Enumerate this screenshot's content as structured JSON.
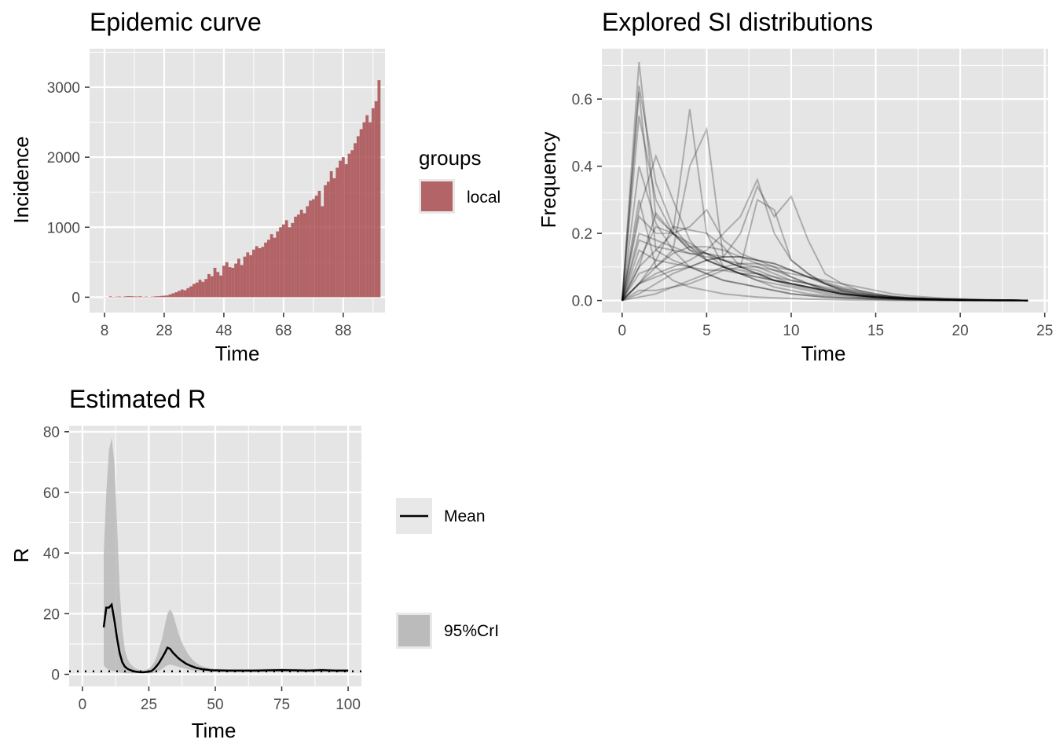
{
  "colors": {
    "panel_background": "#e5e5e5",
    "grid": "#ffffff",
    "incidence_fill": "#a84c50",
    "line": "#000000",
    "ribbon": "#b3b3b3",
    "text_axis": "#4d4d4d"
  },
  "chart_data": [
    {
      "id": "epicurve",
      "type": "bar",
      "title": "Epidemic curve",
      "xlabel": "Time",
      "ylabel": "Incidence",
      "xlim": [
        3,
        102
      ],
      "ylim": [
        -220,
        3550
      ],
      "xticks": [
        8,
        28,
        48,
        68,
        88
      ],
      "xtick_labels": [
        "8",
        "28",
        "48",
        "68",
        "88"
      ],
      "yticks": [
        0,
        1000,
        2000,
        3000
      ],
      "ytick_labels": [
        "0",
        "1000",
        "2000",
        "3000"
      ],
      "grid": true,
      "legend": {
        "title": "groups",
        "entries": [
          "local"
        ],
        "placement": "right"
      },
      "x": [
        8,
        9,
        10,
        11,
        12,
        13,
        14,
        15,
        16,
        17,
        18,
        19,
        20,
        21,
        22,
        23,
        24,
        25,
        26,
        27,
        28,
        29,
        30,
        31,
        32,
        33,
        34,
        35,
        36,
        37,
        38,
        39,
        40,
        41,
        42,
        43,
        44,
        45,
        46,
        47,
        48,
        49,
        50,
        51,
        52,
        53,
        54,
        55,
        56,
        57,
        58,
        59,
        60,
        61,
        62,
        63,
        64,
        65,
        66,
        67,
        68,
        69,
        70,
        71,
        72,
        73,
        74,
        75,
        76,
        77,
        78,
        79,
        80,
        81,
        82,
        83,
        84,
        85,
        86,
        87,
        88,
        89,
        90,
        91,
        92,
        93,
        94,
        95,
        96,
        97,
        98,
        99,
        100
      ],
      "values": [
        2,
        3,
        12,
        5,
        8,
        10,
        6,
        12,
        15,
        14,
        11,
        10,
        13,
        6,
        9,
        5,
        8,
        12,
        14,
        18,
        22,
        25,
        40,
        55,
        70,
        90,
        110,
        100,
        130,
        155,
        190,
        210,
        250,
        220,
        260,
        330,
        300,
        420,
        360,
        310,
        450,
        500,
        430,
        420,
        480,
        550,
        460,
        580,
        640,
        600,
        680,
        730,
        700,
        720,
        780,
        820,
        900,
        850,
        940,
        1000,
        1040,
        1100,
        1000,
        1060,
        1150,
        1180,
        1250,
        1200,
        1300,
        1380,
        1400,
        1450,
        1520,
        1300,
        1600,
        1650,
        1800,
        1700,
        1850,
        1950,
        2000,
        1900,
        2050,
        2100,
        2200,
        2300,
        2400,
        2500,
        2600,
        2500,
        2700,
        2800,
        3100
      ]
    },
    {
      "id": "si",
      "type": "line",
      "title": "Explored SI distributions",
      "xlabel": "Time",
      "ylabel": "Frequency",
      "xlim": [
        -1.2,
        25.2
      ],
      "ylim": [
        -0.036,
        0.75
      ],
      "xticks": [
        0,
        5,
        10,
        15,
        20,
        25
      ],
      "xtick_labels": [
        "0",
        "5",
        "10",
        "15",
        "20",
        "25"
      ],
      "yticks": [
        0,
        0.2,
        0.4,
        0.6
      ],
      "ytick_labels": [
        "0.0",
        "0.2",
        "0.4",
        "0.6"
      ],
      "grid": true,
      "x": [
        0,
        1,
        2,
        3,
        4,
        5,
        6,
        7,
        8,
        9,
        10,
        11,
        12,
        13,
        14,
        15,
        16,
        17,
        18,
        19,
        20,
        21,
        22,
        23,
        24
      ],
      "series": [
        {
          "values": [
            0,
            0.71,
            0.25,
            0.2,
            0.15,
            0.14,
            0.1,
            0.08,
            0.06,
            0.04,
            0.03,
            0.02,
            0.015,
            0.01,
            0.008,
            0.006,
            0.004,
            0.003,
            0.002,
            0.002,
            0.001,
            0.001,
            0.001,
            0.001,
            0
          ]
        },
        {
          "values": [
            0,
            0.64,
            0.35,
            0.22,
            0.16,
            0.12,
            0.1,
            0.08,
            0.06,
            0.05,
            0.04,
            0.03,
            0.02,
            0.015,
            0.01,
            0.008,
            0.006,
            0.004,
            0.003,
            0.002,
            0.002,
            0.001,
            0.001,
            0.001,
            0
          ]
        },
        {
          "values": [
            0,
            0.55,
            0.3,
            0.2,
            0.15,
            0.12,
            0.1,
            0.08,
            0.07,
            0.06,
            0.05,
            0.04,
            0.03,
            0.02,
            0.015,
            0.01,
            0.008,
            0.006,
            0.004,
            0.003,
            0.002,
            0.002,
            0.001,
            0.001,
            0
          ]
        },
        {
          "values": [
            0,
            0.62,
            0.15,
            0.12,
            0.1,
            0.08,
            0.06,
            0.05,
            0.04,
            0.03,
            0.02,
            0.015,
            0.01,
            0.008,
            0.006,
            0.004,
            0.003,
            0.002,
            0.002,
            0.001,
            0.001,
            0.001,
            0,
            0,
            0
          ]
        },
        {
          "values": [
            0,
            0.27,
            0.43,
            0.3,
            0.18,
            0.12,
            0.1,
            0.09,
            0.08,
            0.06,
            0.05,
            0.04,
            0.03,
            0.02,
            0.015,
            0.01,
            0.008,
            0.006,
            0.004,
            0.003,
            0.002,
            0.001,
            0.001,
            0.001,
            0
          ]
        },
        {
          "values": [
            0,
            0.1,
            0.15,
            0.2,
            0.57,
            0.2,
            0.1,
            0.08,
            0.07,
            0.06,
            0.05,
            0.04,
            0.03,
            0.02,
            0.015,
            0.01,
            0.008,
            0.006,
            0.004,
            0.003,
            0.002,
            0.001,
            0.001,
            0.001,
            0
          ]
        },
        {
          "values": [
            0,
            0.08,
            0.1,
            0.15,
            0.4,
            0.51,
            0.12,
            0.1,
            0.08,
            0.06,
            0.05,
            0.04,
            0.03,
            0.02,
            0.015,
            0.01,
            0.008,
            0.006,
            0.004,
            0.003,
            0.002,
            0.001,
            0.001,
            0.001,
            0
          ]
        },
        {
          "values": [
            0,
            0.05,
            0.08,
            0.1,
            0.12,
            0.15,
            0.2,
            0.25,
            0.36,
            0.2,
            0.12,
            0.08,
            0.05,
            0.03,
            0.02,
            0.015,
            0.01,
            0.008,
            0.006,
            0.004,
            0.003,
            0.002,
            0.001,
            0.001,
            0
          ]
        },
        {
          "values": [
            0,
            0.05,
            0.07,
            0.09,
            0.1,
            0.12,
            0.13,
            0.2,
            0.34,
            0.25,
            0.31,
            0.18,
            0.08,
            0.05,
            0.03,
            0.02,
            0.012,
            0.008,
            0.006,
            0.004,
            0.003,
            0.002,
            0.001,
            0.001,
            0
          ]
        },
        {
          "values": [
            0,
            0.1,
            0.26,
            0.2,
            0.16,
            0.14,
            0.12,
            0.1,
            0.09,
            0.07,
            0.05,
            0.04,
            0.03,
            0.02,
            0.015,
            0.01,
            0.007,
            0.005,
            0.004,
            0.003,
            0.002,
            0.001,
            0.001,
            0.001,
            0
          ]
        },
        {
          "values": [
            0,
            0.2,
            0.18,
            0.16,
            0.14,
            0.13,
            0.12,
            0.11,
            0.1,
            0.08,
            0.06,
            0.05,
            0.03,
            0.02,
            0.015,
            0.01,
            0.007,
            0.005,
            0.004,
            0.003,
            0.002,
            0.001,
            0.001,
            0.001,
            0
          ]
        },
        {
          "values": [
            0,
            0.02,
            0.05,
            0.08,
            0.1,
            0.12,
            0.13,
            0.13,
            0.12,
            0.11,
            0.09,
            0.07,
            0.05,
            0.035,
            0.025,
            0.015,
            0.01,
            0.007,
            0.005,
            0.003,
            0.002,
            0.001,
            0.001,
            0.001,
            0
          ]
        },
        {
          "values": [
            0,
            0.01,
            0.02,
            0.04,
            0.06,
            0.08,
            0.1,
            0.11,
            0.11,
            0.1,
            0.09,
            0.07,
            0.055,
            0.04,
            0.03,
            0.02,
            0.013,
            0.009,
            0.006,
            0.004,
            0.003,
            0.002,
            0.001,
            0.001,
            0
          ]
        },
        {
          "values": [
            0,
            0.15,
            0.12,
            0.11,
            0.1,
            0.09,
            0.09,
            0.08,
            0.08,
            0.07,
            0.06,
            0.05,
            0.04,
            0.03,
            0.02,
            0.015,
            0.01,
            0.007,
            0.005,
            0.003,
            0.002,
            0.001,
            0.001,
            0.001,
            0
          ]
        },
        {
          "values": [
            0,
            0.3,
            0.1,
            0.06,
            0.04,
            0.03,
            0.02,
            0.015,
            0.01,
            0.008,
            0.006,
            0.004,
            0.003,
            0.002,
            0.001,
            0.001,
            0,
            0,
            0,
            0,
            0,
            0,
            0,
            0,
            0
          ]
        },
        {
          "values": [
            0,
            0.05,
            0.1,
            0.14,
            0.16,
            0.16,
            0.15,
            0.13,
            0.11,
            0.09,
            0.07,
            0.05,
            0.035,
            0.025,
            0.015,
            0.01,
            0.007,
            0.005,
            0.003,
            0.002,
            0.001,
            0.001,
            0.001,
            0,
            0
          ]
        },
        {
          "values": [
            0,
            0.12,
            0.22,
            0.2,
            0.17,
            0.14,
            0.12,
            0.1,
            0.08,
            0.06,
            0.045,
            0.035,
            0.025,
            0.018,
            0.012,
            0.008,
            0.005,
            0.003,
            0.002,
            0.002,
            0.001,
            0.001,
            0,
            0,
            0
          ]
        },
        {
          "values": [
            0,
            0.03,
            0.03,
            0.04,
            0.05,
            0.07,
            0.09,
            0.1,
            0.1,
            0.09,
            0.08,
            0.07,
            0.06,
            0.05,
            0.04,
            0.03,
            0.02,
            0.014,
            0.01,
            0.007,
            0.005,
            0.003,
            0.002,
            0.001,
            0
          ]
        },
        {
          "values": [
            0,
            0.25,
            0.2,
            0.2,
            0.22,
            0.27,
            0.18,
            0.14,
            0.12,
            0.1,
            0.07,
            0.05,
            0.035,
            0.025,
            0.015,
            0.01,
            0.006,
            0.004,
            0.003,
            0.002,
            0.001,
            0.001,
            0,
            0,
            0
          ]
        },
        {
          "values": [
            0,
            0.05,
            0.12,
            0.22,
            0.21,
            0.2,
            0.16,
            0.1,
            0.3,
            0.27,
            0.12,
            0.08,
            0.05,
            0.03,
            0.02,
            0.012,
            0.008,
            0.005,
            0.003,
            0.002,
            0.001,
            0.001,
            0,
            0,
            0
          ]
        },
        {
          "values": [
            0,
            0.18,
            0.16,
            0.15,
            0.14,
            0.14,
            0.13,
            0.13,
            0.12,
            0.11,
            0.09,
            0.07,
            0.05,
            0.035,
            0.025,
            0.016,
            0.01,
            0.006,
            0.004,
            0.003,
            0.002,
            0.001,
            0.001,
            0,
            0
          ]
        },
        {
          "values": [
            0,
            0.4,
            0.23,
            0.15,
            0.1,
            0.08,
            0.06,
            0.05,
            0.04,
            0.03,
            0.02,
            0.015,
            0.01,
            0.007,
            0.005,
            0.003,
            0.002,
            0.001,
            0.001,
            0,
            0,
            0,
            0,
            0,
            0
          ]
        }
      ]
    },
    {
      "id": "r",
      "type": "area",
      "title": "Estimated R",
      "xlabel": "Time",
      "ylabel": "R",
      "xlim": [
        -5,
        105
      ],
      "ylim": [
        -4,
        82
      ],
      "xticks": [
        0,
        25,
        50,
        75,
        100
      ],
      "xtick_labels": [
        "0",
        "25",
        "50",
        "75",
        "100"
      ],
      "yticks": [
        0,
        20,
        40,
        60,
        80
      ],
      "ytick_labels": [
        "0",
        "20",
        "40",
        "60",
        "80"
      ],
      "grid": true,
      "reference_line": 1,
      "legend": {
        "entries": [
          "Mean",
          "95%CrI"
        ],
        "placement": "right"
      },
      "x": [
        8,
        9,
        10,
        11,
        12,
        13,
        14,
        15,
        16,
        17,
        18,
        19,
        20,
        21,
        22,
        23,
        24,
        25,
        26,
        27,
        28,
        29,
        30,
        31,
        32,
        33,
        34,
        35,
        36,
        37,
        38,
        39,
        40,
        41,
        42,
        43,
        44,
        45,
        46,
        47,
        48,
        49,
        50,
        55,
        60,
        65,
        70,
        75,
        80,
        85,
        90,
        95,
        100
      ],
      "series": [
        {
          "name": "Mean",
          "values": [
            15.5,
            22,
            22,
            23,
            18,
            12,
            7,
            4,
            2.5,
            1.8,
            1.4,
            1.1,
            0.9,
            0.8,
            0.7,
            0.7,
            0.8,
            0.9,
            1.1,
            1.8,
            2.8,
            4,
            5.5,
            7,
            8.8,
            8.4,
            7.2,
            6.3,
            5.4,
            4.7,
            4.1,
            3.5,
            3.1,
            2.7,
            2.4,
            2.1,
            1.9,
            1.7,
            1.6,
            1.5,
            1.4,
            1.3,
            1.3,
            1.2,
            1.2,
            1.2,
            1.3,
            1.4,
            1.3,
            1.2,
            1.4,
            1.2,
            1.2
          ]
        },
        {
          "name": "95%CrI",
          "lower": [
            3,
            2,
            1.5,
            1.2,
            1,
            0.8,
            0.6,
            0.5,
            0.4,
            0.3,
            0.3,
            0.3,
            0.3,
            0.3,
            0.3,
            0.3,
            0.3,
            0.3,
            0.3,
            0.5,
            0.8,
            1.2,
            1.8,
            2.4,
            3,
            3.2,
            3,
            2.8,
            2.5,
            2.2,
            2,
            1.8,
            1.6,
            1.4,
            1.3,
            1.2,
            1.1,
            1,
            0.9,
            0.9,
            0.8,
            0.8,
            0.8,
            0.8,
            0.8,
            0.8,
            0.9,
            0.9,
            0.9,
            0.8,
            0.9,
            0.8,
            0.8
          ],
          "upper": [
            40,
            60,
            74,
            78,
            70,
            50,
            28,
            15,
            8,
            5,
            3.5,
            2.6,
            2,
            1.6,
            1.3,
            1.3,
            1.5,
            1.9,
            2.6,
            4,
            6,
            9,
            12,
            16,
            20,
            21.5,
            20,
            17,
            14,
            11.5,
            9.5,
            7.8,
            6.4,
            5.3,
            4.4,
            3.7,
            3.1,
            2.7,
            2.4,
            2.2,
            2,
            1.9,
            1.8,
            1.7,
            1.7,
            1.7,
            1.8,
            1.9,
            1.8,
            1.7,
            1.9,
            1.7,
            1.7
          ]
        }
      ]
    }
  ]
}
